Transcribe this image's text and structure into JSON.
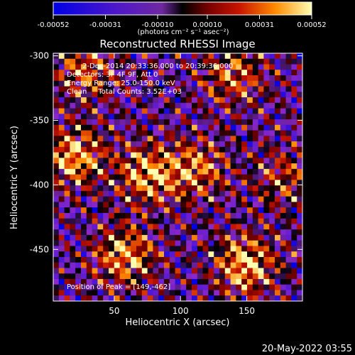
{
  "chart_data": {
    "type": "heatmap",
    "title": "Reconstructed RHESSI Image",
    "xlabel": "Heliocentric X (arcsec)",
    "ylabel": "Heliocentric Y (arcsec)",
    "xlim": [
      4,
      192
    ],
    "ylim": [
      -490,
      -298
    ],
    "x_ticks": [
      50,
      100,
      150
    ],
    "y_ticks": [
      -300,
      -350,
      -400,
      -450
    ],
    "colorbar": {
      "range": [
        -0.00052,
        0.00052
      ],
      "tick_values": [
        -0.00052,
        -0.00031,
        -0.0001,
        0.0001,
        0.00031,
        0.00052
      ],
      "tick_labels": [
        "-0.00052",
        "-0.00031",
        "-0.00010",
        "0.00010",
        "0.00031",
        "0.00052"
      ],
      "unit_label": "(photons cm⁻² s⁻¹ asec⁻²)"
    },
    "colors": {
      "negative_low": "#0000e6",
      "negative_high": "#8c28c8",
      "zero": "#000000",
      "mid_positive": "#c81400",
      "high_positive": "#ff8c00",
      "peak": "#ffffb4"
    },
    "annotations": [
      "2-Dec-2014 20:33:36.000 to 20:39:36.000",
      "Detectors: 3F 4F 9F, Att 0",
      "Energy Range: 25.0-150.0 keV",
      "Clean     Total Counts: 3.52E+03"
    ],
    "peak_label": "Position of Peak = [149,-462]",
    "peak": {
      "x": 149,
      "y": -462
    },
    "bright_regions": [
      {
        "x": 20,
        "y": -378,
        "level": 0.95
      },
      {
        "x": 75,
        "y": -392,
        "level": 0.9
      },
      {
        "x": 112,
        "y": -388,
        "level": 0.75
      },
      {
        "x": 58,
        "y": -455,
        "level": 0.9
      },
      {
        "x": 149,
        "y": -462,
        "level": 1.0
      },
      {
        "x": 178,
        "y": -395,
        "level": 0.55
      },
      {
        "x": 28,
        "y": -312,
        "level": 0.7
      },
      {
        "x": 140,
        "y": -315,
        "level": 0.7
      }
    ]
  },
  "footer": {
    "timestamp": "20-May-2022 03:55"
  }
}
